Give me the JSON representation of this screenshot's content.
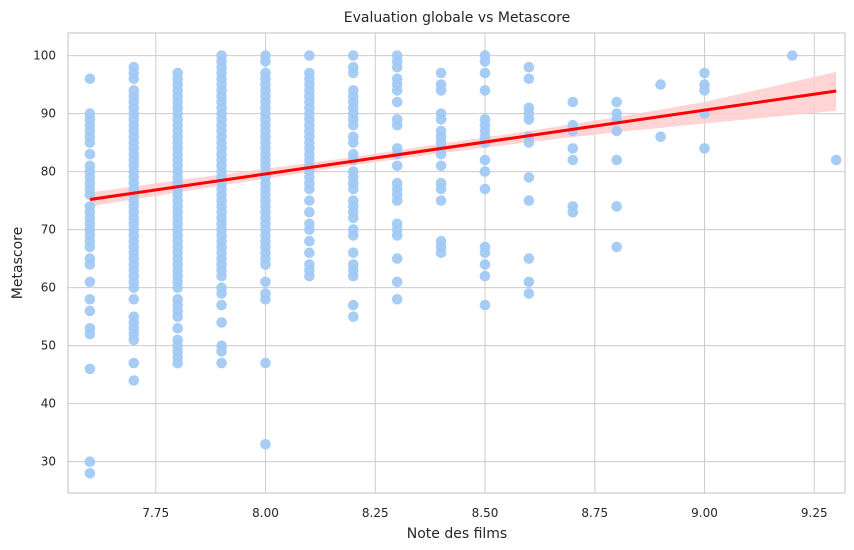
{
  "chart_data": {
    "type": "scatter",
    "title": "Evaluation globale vs Metascore",
    "xlabel": "Note des films",
    "ylabel": "Metascore",
    "xlim": [
      7.55,
      9.32
    ],
    "ylim": [
      24.6,
      103.9
    ],
    "xticks": [
      "7.75",
      "8.00",
      "8.25",
      "8.50",
      "8.75",
      "9.00",
      "9.25"
    ],
    "yticks": [
      "30",
      "40",
      "50",
      "60",
      "70",
      "80",
      "90",
      "100"
    ],
    "grid": true,
    "colors": {
      "points": "#a1c9f4",
      "regression_line": "#ff0000",
      "confidence_band": "#ffcccc"
    },
    "regression": {
      "x": [
        7.6,
        9.3
      ],
      "y": [
        75.2,
        93.9
      ]
    },
    "confidence_band": {
      "x": [
        7.6,
        7.8,
        8.0,
        8.2,
        8.4,
        8.6,
        8.8,
        9.0,
        9.3
      ],
      "lower": [
        74.0,
        76.4,
        78.8,
        81.1,
        83.2,
        85.1,
        86.8,
        88.3,
        90.5
      ],
      "upper": [
        76.4,
        78.5,
        80.5,
        82.5,
        84.8,
        87.0,
        89.4,
        92.0,
        97.2
      ]
    },
    "series": [
      {
        "x": 7.6,
        "y": [
          96,
          90,
          89,
          88,
          87,
          86,
          85,
          83,
          81,
          80,
          79,
          78,
          77,
          76,
          74,
          73,
          72,
          71,
          70,
          69,
          68,
          67,
          65,
          64,
          61,
          58,
          56,
          53,
          52,
          46,
          30,
          28
        ]
      },
      {
        "x": 7.7,
        "y": [
          98,
          97,
          96,
          94,
          93,
          92,
          91,
          90,
          89,
          88,
          87,
          86,
          85,
          84,
          83,
          82,
          81,
          80,
          79,
          78,
          77,
          76,
          75,
          74,
          73,
          72,
          71,
          70,
          69,
          68,
          67,
          66,
          65,
          64,
          63,
          62,
          61,
          60,
          58,
          55,
          54,
          53,
          52,
          51,
          47,
          44
        ]
      },
      {
        "x": 7.8,
        "y": [
          97,
          96,
          95,
          94,
          93,
          92,
          91,
          90,
          89,
          88,
          87,
          86,
          85,
          84,
          83,
          82,
          81,
          80,
          79,
          78,
          77,
          76,
          75,
          74,
          73,
          72,
          71,
          70,
          69,
          68,
          67,
          66,
          65,
          64,
          63,
          62,
          61,
          60,
          58,
          57,
          56,
          55,
          53,
          51,
          50,
          49,
          48,
          47
        ]
      },
      {
        "x": 7.9,
        "y": [
          100,
          99,
          98,
          97,
          96,
          95,
          94,
          93,
          92,
          91,
          90,
          89,
          88,
          87,
          86,
          85,
          84,
          83,
          82,
          81,
          80,
          79,
          78,
          77,
          76,
          75,
          74,
          73,
          72,
          71,
          70,
          69,
          68,
          67,
          66,
          65,
          64,
          63,
          62,
          60,
          59,
          57,
          54,
          50,
          49,
          47
        ]
      },
      {
        "x": 8.0,
        "y": [
          100,
          99,
          97,
          96,
          95,
          94,
          93,
          92,
          91,
          90,
          89,
          88,
          87,
          86,
          85,
          84,
          83,
          82,
          81,
          80,
          79,
          78,
          77,
          76,
          75,
          74,
          73,
          72,
          71,
          70,
          69,
          68,
          67,
          66,
          65,
          64,
          61,
          59,
          58,
          47,
          33
        ]
      },
      {
        "x": 8.1,
        "y": [
          100,
          97,
          96,
          95,
          94,
          93,
          92,
          91,
          90,
          89,
          88,
          87,
          86,
          85,
          84,
          83,
          82,
          81,
          80,
          79,
          78,
          77,
          75,
          73,
          71,
          70,
          68,
          66,
          64,
          63,
          62
        ]
      },
      {
        "x": 8.2,
        "y": [
          100,
          98,
          97,
          94,
          93,
          92,
          91,
          90,
          89,
          88,
          86,
          85,
          83,
          82,
          80,
          79,
          78,
          77,
          75,
          74,
          73,
          72,
          70,
          69,
          66,
          64,
          63,
          62,
          57,
          55
        ]
      },
      {
        "x": 8.3,
        "y": [
          100,
          99,
          98,
          96,
          95,
          94,
          92,
          89,
          88,
          84,
          83,
          81,
          78,
          77,
          76,
          75,
          71,
          70,
          69,
          65,
          61,
          58
        ]
      },
      {
        "x": 8.4,
        "y": [
          97,
          95,
          94,
          90,
          89,
          87,
          86,
          85,
          84,
          83,
          81,
          78,
          77,
          75,
          68,
          67,
          66
        ]
      },
      {
        "x": 8.5,
        "y": [
          100,
          99,
          97,
          94,
          89,
          88,
          87,
          86,
          85,
          82,
          80,
          77,
          67,
          66,
          64,
          62,
          57
        ]
      },
      {
        "x": 8.6,
        "y": [
          98,
          96,
          91,
          90,
          89,
          86,
          85,
          79,
          75,
          65,
          61,
          59
        ]
      },
      {
        "x": 8.7,
        "y": [
          92,
          88,
          87,
          84,
          82,
          74,
          73
        ]
      },
      {
        "x": 8.8,
        "y": [
          92,
          90,
          89,
          87,
          82,
          74,
          67
        ]
      },
      {
        "x": 8.9,
        "y": [
          95,
          86
        ]
      },
      {
        "x": 9.0,
        "y": [
          97,
          95,
          94,
          90,
          84
        ]
      },
      {
        "x": 9.2,
        "y": [
          100
        ]
      },
      {
        "x": 9.3,
        "y": [
          82
        ]
      }
    ]
  }
}
